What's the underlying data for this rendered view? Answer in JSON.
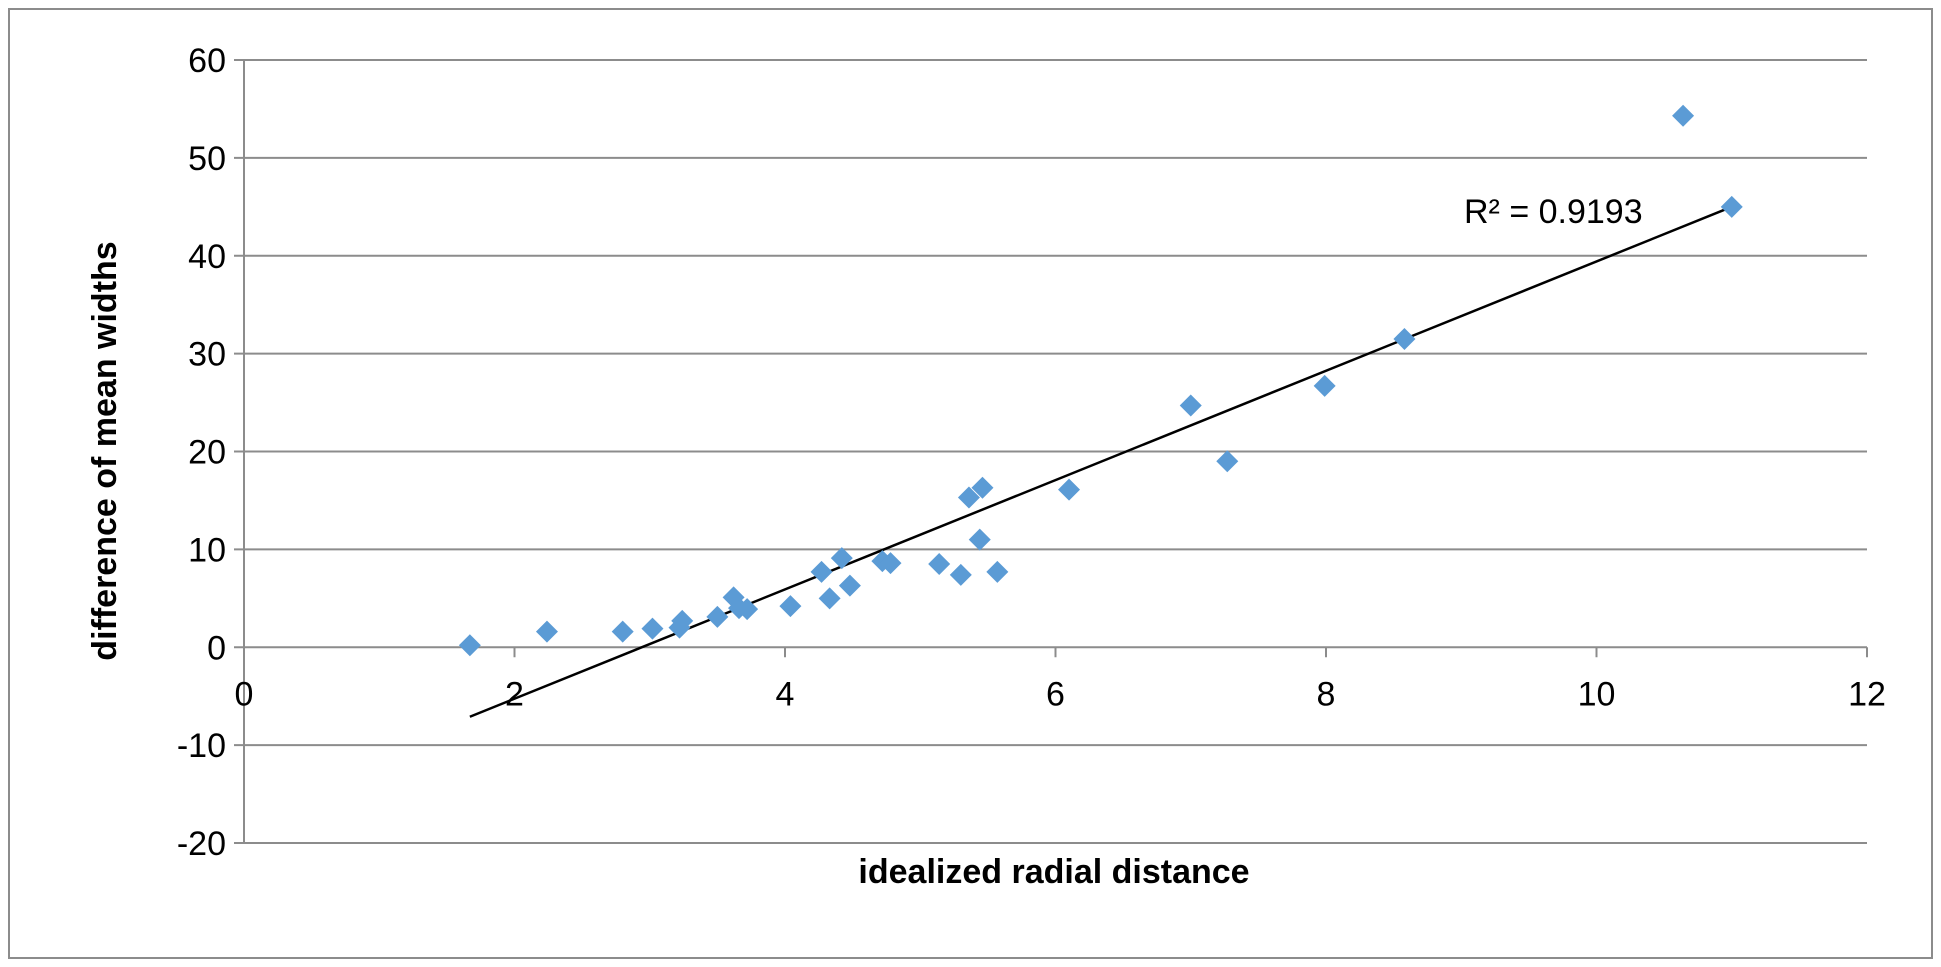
{
  "chart_data": {
    "type": "scatter",
    "title": "",
    "xlabel": "idealized radial distance",
    "ylabel": "difference of mean widths",
    "xlim": [
      0,
      12
    ],
    "ylim": [
      -20,
      60
    ],
    "x_ticks": [
      0,
      2,
      4,
      6,
      8,
      10,
      12
    ],
    "y_ticks": [
      -20,
      -10,
      0,
      10,
      20,
      30,
      40,
      50,
      60
    ],
    "grid": {
      "horizontal": true,
      "vertical": false
    },
    "legend": "none",
    "series": [
      {
        "marker": "diamond",
        "color": "#5B9BD5",
        "points": [
          {
            "x": 1.67,
            "y": 0.2
          },
          {
            "x": 2.24,
            "y": 1.6
          },
          {
            "x": 2.8,
            "y": 1.6
          },
          {
            "x": 3.02,
            "y": 1.9
          },
          {
            "x": 3.22,
            "y": 2.0
          },
          {
            "x": 3.24,
            "y": 2.7
          },
          {
            "x": 3.5,
            "y": 3.1
          },
          {
            "x": 3.62,
            "y": 5.1
          },
          {
            "x": 3.66,
            "y": 4.0
          },
          {
            "x": 3.72,
            "y": 3.9
          },
          {
            "x": 4.04,
            "y": 4.2
          },
          {
            "x": 4.27,
            "y": 7.7
          },
          {
            "x": 4.33,
            "y": 5.0
          },
          {
            "x": 4.42,
            "y": 9.1
          },
          {
            "x": 4.48,
            "y": 6.3
          },
          {
            "x": 4.72,
            "y": 8.8
          },
          {
            "x": 4.78,
            "y": 8.6
          },
          {
            "x": 5.14,
            "y": 8.5
          },
          {
            "x": 5.3,
            "y": 7.4
          },
          {
            "x": 5.36,
            "y": 15.3
          },
          {
            "x": 5.44,
            "y": 11.0
          },
          {
            "x": 5.46,
            "y": 16.3
          },
          {
            "x": 5.57,
            "y": 7.7
          },
          {
            "x": 6.1,
            "y": 16.1
          },
          {
            "x": 7.0,
            "y": 24.7
          },
          {
            "x": 7.27,
            "y": 19.0
          },
          {
            "x": 7.99,
            "y": 26.7
          },
          {
            "x": 8.58,
            "y": 31.5
          },
          {
            "x": 10.64,
            "y": 54.3
          },
          {
            "x": 11.0,
            "y": 45.0
          }
        ]
      }
    ],
    "trendline": {
      "type": "linear",
      "x": [
        1.67,
        11.0
      ],
      "y": [
        -7.1,
        45.0
      ],
      "color": "#000000"
    },
    "annotations": [
      {
        "text": "R² = 0.9193"
      }
    ]
  }
}
